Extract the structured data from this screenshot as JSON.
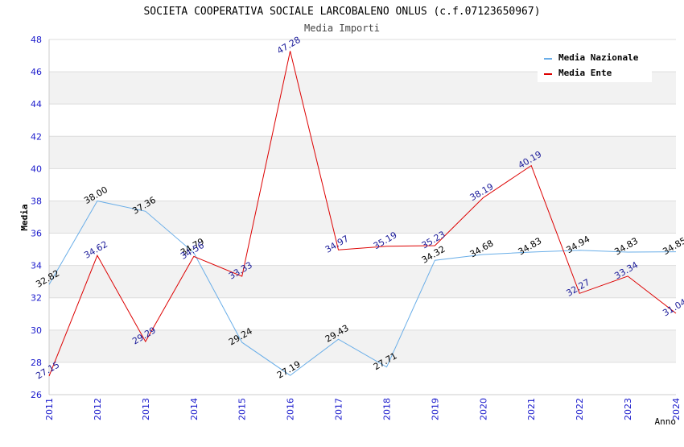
{
  "chart_data": {
    "type": "line",
    "title": "SOCIETA COOPERATIVA SOCIALE LARCOBALENO ONLUS (c.f.07123650967)",
    "subtitle": "Media Importi",
    "xlabel": "Anno",
    "ylabel": "Media",
    "ylim": [
      26,
      48
    ],
    "yticks": [
      26,
      28,
      30,
      32,
      34,
      36,
      38,
      40,
      42,
      44,
      46,
      48
    ],
    "x": [
      "2011",
      "2012",
      "2013",
      "2014",
      "2015",
      "2016",
      "2017",
      "2018",
      "2019",
      "2020",
      "2021",
      "2022",
      "2023",
      "2024"
    ],
    "grid": true,
    "legend_position": "top-right",
    "series": [
      {
        "name": "Media Nazionale",
        "color": "#6aaee8",
        "label_color": "#000000",
        "values": [
          32.82,
          38.0,
          37.36,
          34.79,
          29.24,
          27.19,
          29.43,
          27.71,
          34.32,
          34.68,
          34.83,
          34.94,
          34.83,
          34.85
        ],
        "labels": [
          "32.82",
          "38.00",
          "37.36",
          "34.79",
          "29.24",
          "27.19",
          "29.43",
          "27.71",
          "34.32",
          "34.68",
          "34.83",
          "34.94",
          "34.83",
          "34.85"
        ]
      },
      {
        "name": "Media Ente",
        "color": "#dd0000",
        "label_color": "#1a1a99",
        "values": [
          27.15,
          34.62,
          29.29,
          34.56,
          33.33,
          47.28,
          34.97,
          35.19,
          35.23,
          38.19,
          40.19,
          32.27,
          33.34,
          31.04
        ],
        "labels": [
          "27.15",
          "34.62",
          "29.29",
          "34.56",
          "33.33",
          "47.28",
          "34.97",
          "35.19",
          "35.23",
          "38.19",
          "40.19",
          "32.27",
          "33.34",
          "31.04"
        ]
      }
    ]
  }
}
